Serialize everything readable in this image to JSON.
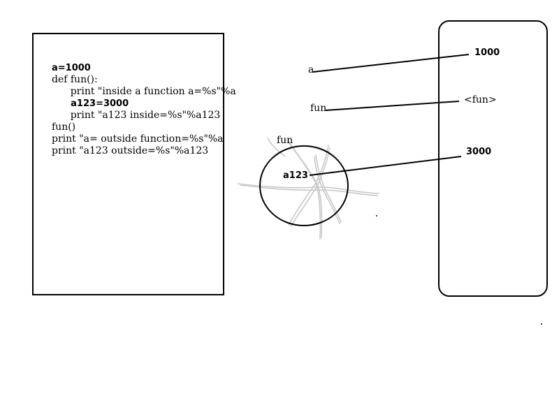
{
  "code": {
    "lines": [
      "a=1000",
      "def fun():",
      "      print \"inside a function a=%s\"%a",
      "      a123=3000",
      "      print \"a123 inside=%s\"%a123",
      "fun()",
      "print \"a= outside function=%s\"%a",
      "print \"a123 outside=%s\"%a123"
    ]
  },
  "names": {
    "a": "a",
    "fun": "fun",
    "scope_label": "fun",
    "a123": "a123"
  },
  "values": {
    "v1000": "1000",
    "vfun": "<fun>",
    "v3000": "3000"
  },
  "colors": {
    "stroke": "#000000",
    "scribble": "#c8c8c8",
    "background": "#ffffff"
  }
}
